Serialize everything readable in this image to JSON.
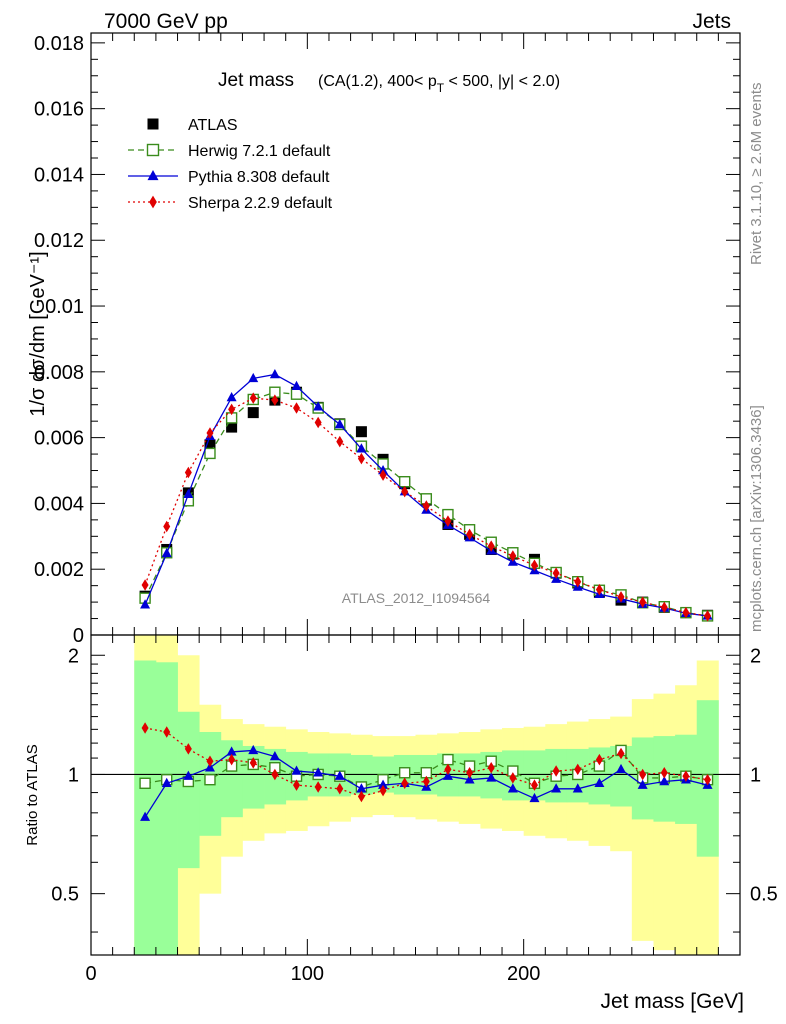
{
  "header": {
    "left": "7000 GeV pp",
    "right": "Jets"
  },
  "side_labels": {
    "rivet": "Rivet 3.1.10, ≥ 2.6M events",
    "mcplots": "mcplots.cern.ch [arXiv:1306.3436]"
  },
  "chart_data": [
    {
      "type": "scatter",
      "panel": "main",
      "title": "Jet mass",
      "subtitle": "(CA(1.2), 400< p_T < 500, |y| < 2.0)",
      "subtitle_parts": {
        "pre": "(CA(1.2), 400< p",
        "sub": "T",
        "post": " < 500, |y| < 2.0)"
      },
      "ylabel": "1/σ dσ/dm [GeV⁻¹]",
      "watermark": "ATLAS_2012_I1094564",
      "xlim": [
        0,
        300
      ],
      "ylim": [
        0,
        0.0183
      ],
      "yticks": [
        0,
        0.002,
        0.004,
        0.006,
        0.008,
        0.01,
        0.012,
        0.014,
        0.016,
        0.018
      ],
      "ytick_labels": [
        "0",
        "0.002",
        "0.004",
        "0.006",
        "0.008",
        "0.01",
        "0.012",
        "0.014",
        "0.016",
        "0.018"
      ],
      "legend_position": "top-left",
      "x": [
        25,
        35,
        45,
        55,
        65,
        75,
        85,
        95,
        105,
        115,
        125,
        135,
        145,
        155,
        165,
        175,
        185,
        195,
        205,
        215,
        225,
        235,
        245,
        255,
        265,
        275,
        285
      ],
      "series": [
        {
          "name": "ATLAS",
          "color": "#000000",
          "marker": "square-filled",
          "values": [
            0.00118,
            0.0026,
            0.00432,
            0.00578,
            0.00632,
            0.00676,
            0.00714,
            0.00738,
            0.00692,
            0.00642,
            0.00618,
            0.00534,
            0.0046,
            0.0041,
            0.00336,
            0.00306,
            0.0026,
            0.00246,
            0.0023,
            0.00188,
            0.00158,
            0.0013,
            0.00106,
            0.001,
            0.00084,
            0.00068,
            0.0006
          ]
        },
        {
          "name": "Herwig 7.2.1 default",
          "color": "#3a8c1c",
          "marker": "square-open",
          "line": "dashed",
          "values": [
            0.00112,
            0.0025,
            0.00408,
            0.00552,
            0.0066,
            0.00716,
            0.00738,
            0.00732,
            0.0069,
            0.0064,
            0.00574,
            0.0052,
            0.00466,
            0.00414,
            0.00366,
            0.0032,
            0.00282,
            0.0025,
            0.00218,
            0.0019,
            0.00162,
            0.00136,
            0.00122,
            0.00098,
            0.00086,
            0.00068,
            0.00058
          ]
        },
        {
          "name": "Pythia 8.308 default",
          "color": "#0000d6",
          "marker": "triangle-filled",
          "line": "solid",
          "values": [
            0.00092,
            0.00248,
            0.00428,
            0.00604,
            0.00722,
            0.0078,
            0.00792,
            0.00756,
            0.00694,
            0.0064,
            0.00566,
            0.005,
            0.00436,
            0.0038,
            0.00334,
            0.00296,
            0.00256,
            0.00222,
            0.00196,
            0.0017,
            0.00146,
            0.00124,
            0.0011,
            0.00094,
            0.00082,
            0.00066,
            0.00058
          ]
        },
        {
          "name": "Sherpa 2.2.9 default",
          "color": "#e00000",
          "marker": "diamond-filled",
          "line": "dotted",
          "values": [
            0.00152,
            0.0033,
            0.00494,
            0.00614,
            0.00686,
            0.0072,
            0.00714,
            0.0069,
            0.00646,
            0.00588,
            0.00536,
            0.00486,
            0.00436,
            0.00392,
            0.00346,
            0.00306,
            0.0027,
            0.0024,
            0.00212,
            0.00188,
            0.00162,
            0.00138,
            0.00116,
            0.001,
            0.00084,
            0.00068,
            0.00058
          ]
        }
      ]
    },
    {
      "type": "scatter",
      "panel": "ratio",
      "xlabel": "Jet mass [GeV]",
      "ylabel": "Ratio to ATLAS",
      "xlim": [
        0,
        300
      ],
      "ylim": [
        0.35,
        2.25
      ],
      "xticks": [
        0,
        100,
        200
      ],
      "xtick_labels": [
        "0",
        "100",
        "200"
      ],
      "yticks": [
        0.5,
        1,
        2
      ],
      "ytick_labels": [
        "0.5",
        "1",
        "2"
      ],
      "reference": 1,
      "bands": {
        "bin_edges": [
          20,
          30,
          40,
          50,
          60,
          70,
          80,
          90,
          100,
          110,
          120,
          130,
          140,
          150,
          160,
          170,
          180,
          190,
          200,
          210,
          220,
          230,
          240,
          250,
          260,
          270,
          280,
          290
        ],
        "inner_color": "#99ff99",
        "outer_color": "#ffff99",
        "inner_lo": [
          0.35,
          0.35,
          0.58,
          0.7,
          0.78,
          0.82,
          0.84,
          0.86,
          0.88,
          0.88,
          0.89,
          0.9,
          0.89,
          0.89,
          0.88,
          0.88,
          0.87,
          0.86,
          0.86,
          0.85,
          0.85,
          0.84,
          0.83,
          0.77,
          0.76,
          0.75,
          0.62
        ],
        "inner_hi": [
          1.94,
          1.92,
          1.44,
          1.28,
          1.22,
          1.18,
          1.16,
          1.14,
          1.13,
          1.13,
          1.12,
          1.11,
          1.12,
          1.12,
          1.13,
          1.13,
          1.14,
          1.15,
          1.15,
          1.16,
          1.16,
          1.17,
          1.18,
          1.24,
          1.25,
          1.26,
          1.54
        ],
        "outer_lo": [
          0.35,
          0.35,
          0.35,
          0.5,
          0.62,
          0.68,
          0.71,
          0.72,
          0.74,
          0.76,
          0.78,
          0.79,
          0.78,
          0.77,
          0.76,
          0.75,
          0.73,
          0.72,
          0.7,
          0.69,
          0.68,
          0.66,
          0.64,
          0.38,
          0.36,
          0.34,
          0.34
        ],
        "outer_hi": [
          2.25,
          2.25,
          2.0,
          1.5,
          1.38,
          1.34,
          1.32,
          1.3,
          1.28,
          1.27,
          1.26,
          1.25,
          1.25,
          1.26,
          1.27,
          1.28,
          1.3,
          1.31,
          1.32,
          1.34,
          1.36,
          1.38,
          1.4,
          1.55,
          1.6,
          1.68,
          1.94
        ]
      },
      "x": [
        25,
        35,
        45,
        55,
        65,
        75,
        85,
        95,
        105,
        115,
        125,
        135,
        145,
        155,
        165,
        175,
        185,
        195,
        205,
        215,
        225,
        235,
        245,
        255,
        265,
        275,
        285
      ],
      "series": [
        {
          "name": "Herwig 7.2.1 default",
          "color": "#3a8c1c",
          "marker": "square-open",
          "line": "dashed",
          "values": [
            0.95,
            0.97,
            0.96,
            0.97,
            1.05,
            1.06,
            1.04,
            0.99,
            1.0,
            0.99,
            0.93,
            0.97,
            1.01,
            1.01,
            1.09,
            1.05,
            1.08,
            1.02,
            0.95,
            0.99,
            1.0,
            1.05,
            1.15,
            0.98,
            0.98,
            0.99,
            0.97
          ]
        },
        {
          "name": "Pythia 8.308 default",
          "color": "#0000d6",
          "marker": "triangle-filled",
          "line": "solid",
          "values": [
            0.78,
            0.95,
            0.99,
            1.04,
            1.14,
            1.15,
            1.11,
            1.02,
            1.01,
            0.99,
            0.92,
            0.94,
            0.95,
            0.93,
            0.99,
            0.97,
            0.98,
            0.92,
            0.87,
            0.92,
            0.92,
            0.95,
            1.03,
            0.94,
            0.96,
            0.97,
            0.94
          ]
        },
        {
          "name": "Sherpa 2.2.9 default",
          "color": "#e00000",
          "marker": "diamond-filled",
          "line": "dotted",
          "values": [
            1.31,
            1.28,
            1.16,
            1.08,
            1.09,
            1.07,
            1.0,
            0.94,
            0.93,
            0.92,
            0.88,
            0.91,
            0.95,
            0.96,
            1.03,
            1.01,
            1.04,
            0.98,
            0.94,
            1.02,
            1.03,
            1.09,
            1.13,
            1.0,
            1.01,
            0.99,
            0.97
          ]
        }
      ]
    }
  ]
}
